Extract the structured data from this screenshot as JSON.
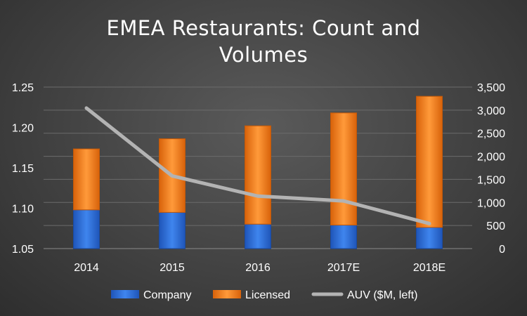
{
  "chart_data": {
    "type": "bar",
    "stacked": true,
    "title": "EMEA Restaurants: Count and Volumes",
    "categories": [
      "2014",
      "2015",
      "2016",
      "2017E",
      "2018E"
    ],
    "series": [
      {
        "name": "Company",
        "type": "bar",
        "axis": "right",
        "values": [
          840,
          785,
          530,
          510,
          460
        ],
        "color": "#2f6fd6"
      },
      {
        "name": "Licensed",
        "type": "bar",
        "axis": "right",
        "values": [
          1320,
          1595,
          2130,
          2430,
          2840
        ],
        "color": "#ee7b14"
      },
      {
        "name": "AUV ($M, left)",
        "type": "line",
        "axis": "left",
        "values": [
          1.224,
          1.14,
          1.115,
          1.109,
          1.081
        ],
        "color": "#b3b3b3"
      }
    ],
    "y_left": {
      "ylim": [
        1.05,
        1.25
      ],
      "ticks": [
        "1.05",
        "1.10",
        "1.15",
        "1.20",
        "1.25"
      ]
    },
    "y_right": {
      "ylim": [
        0,
        3500
      ],
      "ticks": [
        "0",
        "500",
        "1,000",
        "1,500",
        "2,000",
        "2,500",
        "3,000",
        "3,500"
      ]
    },
    "grid": true,
    "legend": "bottom"
  }
}
